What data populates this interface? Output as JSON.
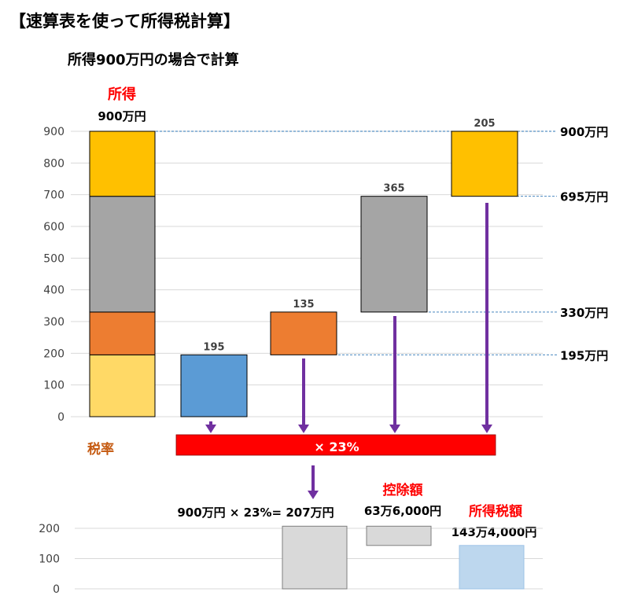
{
  "title": "【速算表を使って所得税計算】",
  "subtitle": "所得900万円の場合で計算",
  "income_label": "所得",
  "income_value_label": "900万円",
  "rate_label": "税率",
  "rate_bar_text": "× 23%",
  "calc_text": "900万円 × 23%= 207万円",
  "deduction_label": "控除額",
  "deduction_value": "63万6,000円",
  "tax_label": "所得税額",
  "tax_value": "143万4,000円",
  "colors": {
    "seg_195": "#FFD966",
    "seg_135": "#ED7D31",
    "seg_365": "#A5A5A5",
    "seg_205": "#FFC000",
    "bar_195": "#5B9BD5",
    "arrow": "#7030A0",
    "rate_bar": "#FF0000",
    "red_label": "#FF0000",
    "orange_label": "#C55A11",
    "gray_bar": "#D9D9D9",
    "lightblue_bar": "#BDD7EE"
  },
  "chart_data": [
    {
      "type": "bar",
      "subtype": "stacked-waterfall",
      "ylim": [
        0,
        900
      ],
      "yticks": [
        0,
        100,
        200,
        300,
        400,
        500,
        600,
        700,
        800,
        900
      ],
      "stack": [
        195,
        135,
        365,
        205
      ],
      "floating_bars": [
        {
          "bottom": 0,
          "top": 195,
          "label": "195"
        },
        {
          "bottom": 195,
          "top": 330,
          "label": "135"
        },
        {
          "bottom": 330,
          "top": 695,
          "label": "365"
        },
        {
          "bottom": 695,
          "top": 900,
          "label": "205"
        }
      ],
      "reference_lines": [
        {
          "value": 900,
          "label": "900万円"
        },
        {
          "value": 695,
          "label": "695万円"
        },
        {
          "value": 330,
          "label": "330万円"
        },
        {
          "value": 195,
          "label": "195万円"
        }
      ],
      "grid": true
    },
    {
      "type": "bar",
      "ylim": [
        0,
        200
      ],
      "yticks": [
        0,
        100,
        200
      ],
      "bars": [
        {
          "bottom": 0,
          "top": 207,
          "label": "900万円 × 23%= 207万円"
        },
        {
          "bottom": 143.4,
          "top": 207,
          "label": "控除額 63万6,000円"
        },
        {
          "bottom": 0,
          "top": 143.4,
          "label": "所得税額 143万4,000円"
        }
      ],
      "grid": true
    }
  ]
}
